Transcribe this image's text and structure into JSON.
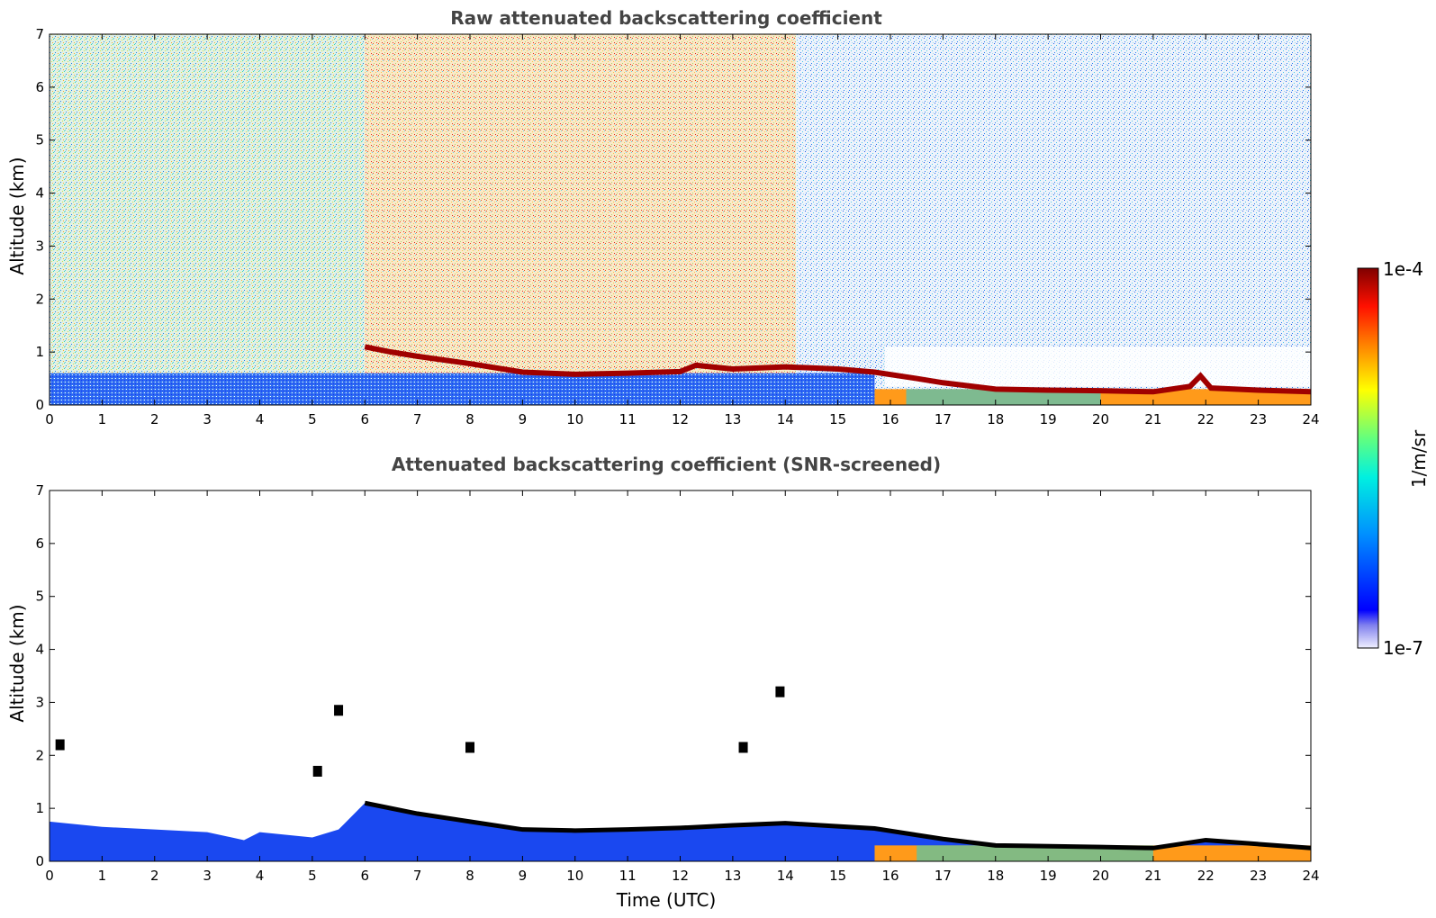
{
  "chart_data": [
    {
      "type": "heatmap",
      "title": "Raw attenuated backscattering coefficient",
      "ylabel": "Altitude (km)",
      "xlabel": "",
      "xlim": [
        0,
        24
      ],
      "ylim": [
        0,
        7
      ],
      "xticks": [
        0,
        1,
        2,
        3,
        4,
        5,
        6,
        7,
        8,
        9,
        10,
        11,
        12,
        13,
        14,
        15,
        16,
        17,
        18,
        19,
        20,
        21,
        22,
        23,
        24
      ],
      "yticks": [
        0,
        1,
        2,
        3,
        4,
        5,
        6,
        7
      ],
      "cloud_layer": {
        "name": "boundary layer / cloud base",
        "x": [
          6.0,
          6.5,
          7.0,
          8.0,
          9.0,
          10.0,
          11.0,
          12.0,
          12.3,
          13.0,
          14.0,
          15.0,
          15.7,
          16.5,
          17.0,
          18.0,
          19.0,
          20.0,
          21.0,
          21.7,
          21.9,
          22.1,
          23.0,
          24.0
        ],
        "altitude_km": [
          1.1,
          1.0,
          0.92,
          0.78,
          0.62,
          0.58,
          0.6,
          0.63,
          0.75,
          0.68,
          0.72,
          0.68,
          0.62,
          0.5,
          0.42,
          0.3,
          0.28,
          0.27,
          0.25,
          0.35,
          0.55,
          0.32,
          0.28,
          0.25
        ]
      },
      "regions": [
        {
          "name": "surface aerosol (high signal)",
          "x": [
            0,
            15.7
          ],
          "altitude_km": [
            0,
            0.6
          ]
        },
        {
          "name": "aerosol below cloud",
          "x": [
            15.7,
            24
          ],
          "altitude_km": [
            0,
            0.3
          ]
        },
        {
          "name": "noisy background",
          "x": [
            0,
            24
          ],
          "altitude_km": [
            0.6,
            7
          ]
        }
      ]
    },
    {
      "type": "heatmap",
      "title": "Attenuated backscattering coefficient (SNR-screened)",
      "ylabel": "Altitude (km)",
      "xlabel": "Time (UTC)",
      "xlim": [
        0,
        24
      ],
      "ylim": [
        0,
        7
      ],
      "xticks": [
        0,
        1,
        2,
        3,
        4,
        5,
        6,
        7,
        8,
        9,
        10,
        11,
        12,
        13,
        14,
        15,
        16,
        17,
        18,
        19,
        20,
        21,
        22,
        23,
        24
      ],
      "yticks": [
        0,
        1,
        2,
        3,
        4,
        5,
        6,
        7
      ],
      "aerosol_top": {
        "x": [
          0,
          1,
          2,
          3,
          3.7,
          4,
          5,
          5.5,
          6,
          7,
          8,
          9,
          10,
          11,
          12,
          13,
          14,
          15,
          15.7,
          17,
          18,
          20,
          21,
          22,
          24
        ],
        "altitude_km": [
          0.75,
          0.65,
          0.6,
          0.55,
          0.4,
          0.55,
          0.45,
          0.6,
          1.1,
          0.9,
          0.75,
          0.6,
          0.58,
          0.6,
          0.63,
          0.68,
          0.72,
          0.66,
          0.62,
          0.42,
          0.3,
          0.27,
          0.25,
          0.4,
          0.25
        ]
      },
      "isolated_features": [
        {
          "x": 0.2,
          "altitude_km": 2.2
        },
        {
          "x": 5.1,
          "altitude_km": 1.7
        },
        {
          "x": 5.5,
          "altitude_km": 2.85
        },
        {
          "x": 8.0,
          "altitude_km": 2.15
        },
        {
          "x": 13.2,
          "altitude_km": 2.15
        },
        {
          "x": 13.9,
          "altitude_km": 3.2
        }
      ]
    }
  ],
  "colorbar": {
    "top_label": "1e-4",
    "bottom_label": "1e-7",
    "unit_label": "1/m/sr",
    "colors": [
      "#e8e8f8",
      "#c8c8f0",
      "#9090f0",
      "#5050f0",
      "#0000ff",
      "#0040ff",
      "#0080ff",
      "#00b0ff",
      "#00e0ff",
      "#00ffd0",
      "#40ffa0",
      "#80ff60",
      "#c0ff30",
      "#ffff00",
      "#ffd000",
      "#ffa000",
      "#ff7000",
      "#ff4000",
      "#e00000",
      "#a00000",
      "#800000"
    ]
  }
}
